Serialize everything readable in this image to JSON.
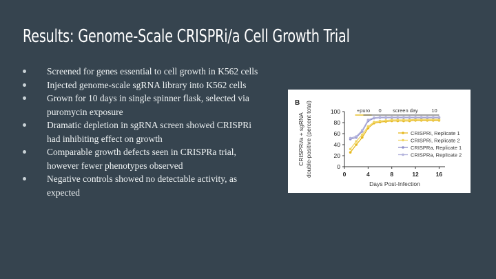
{
  "slide": {
    "title": "Results: Genome-Scale CRISPRi/a Cell Growth Trial",
    "bullets": [
      "Screened for genes essential to cell growth in K562 cells",
      "Injected genome-scale sgRNA library into K562 cells",
      "Grown for 10 days  in single spinner flask, selected via puromycin exposure",
      "Dramatic depletion in sgRNA screen showed CRISPRi had inhibiting effect on growth",
      "Comparable growth defects seen in CRISPRa trial, however fewer phenotypes observed",
      "Negative controls showed no detectable activity, as expected"
    ]
  },
  "chart_data": {
    "type": "line",
    "panel_label": "B",
    "ylabel": "CRISPRi/a + sgRNA double-positive (percent total)",
    "xlabel": "Days Post-Infection",
    "xlim": [
      0,
      17
    ],
    "ylim": [
      0,
      100
    ],
    "xticks": [
      0,
      4,
      8,
      12,
      16
    ],
    "yticks": [
      0,
      20,
      40,
      60,
      80,
      100
    ],
    "annotations": {
      "puro_label": "+puro",
      "screen_day_label": "screen day",
      "screen_day_start": "0",
      "screen_day_end": "10",
      "puro_x": [
        1.8,
        4.6
      ],
      "screen_x": [
        3.2,
        16
      ]
    },
    "colors": {
      "crispri": "#e8c22c",
      "crispra": "#9b9bd0",
      "axis": "#333333"
    },
    "series": [
      {
        "name": "CRISPRi, Replicate 1",
        "color": "#e6b81e",
        "x": [
          1,
          2,
          3,
          4,
          5,
          6,
          7,
          8,
          9,
          10,
          11,
          12,
          13,
          14,
          15,
          16
        ],
        "y": [
          26,
          40,
          53,
          70,
          79,
          81,
          82,
          83,
          83,
          83,
          83,
          84,
          84,
          84,
          84,
          84
        ]
      },
      {
        "name": "CRISPRi, Replicate 2",
        "color": "#f0d460",
        "x": [
          1,
          2,
          3,
          4,
          5,
          6,
          7,
          8,
          9,
          10,
          11,
          12,
          13,
          14,
          15,
          16
        ],
        "y": [
          32,
          46,
          58,
          73,
          81,
          83,
          84,
          85,
          85,
          85,
          85,
          86,
          86,
          86,
          86,
          86
        ]
      },
      {
        "name": "CRISPRa, Replicate 1",
        "color": "#8f8fca",
        "x": [
          1,
          2,
          3,
          4,
          5,
          6,
          7,
          8,
          9,
          10,
          11,
          12,
          13,
          14,
          15,
          16
        ],
        "y": [
          50,
          53,
          64,
          83,
          88,
          89,
          89,
          89,
          89,
          89,
          89,
          89,
          89,
          89,
          89,
          89
        ]
      },
      {
        "name": "CRISPRa, Replicate 2",
        "color": "#b3b3dc",
        "x": [
          1,
          2,
          3,
          4,
          5,
          6,
          7,
          8,
          9,
          10,
          11,
          12,
          13,
          14,
          15,
          16
        ],
        "y": [
          52,
          55,
          66,
          85,
          89,
          90,
          90,
          90,
          90,
          90,
          90,
          90,
          90,
          90,
          90,
          90
        ]
      }
    ]
  }
}
